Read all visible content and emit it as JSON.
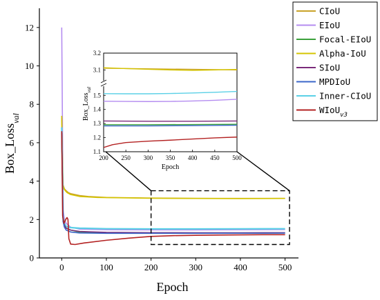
{
  "chart_data": [
    {
      "type": "line",
      "xlabel": "Epoch",
      "ylabel": "Box_Loss",
      "ylabel_sub": "val",
      "xlim": [
        -50,
        530
      ],
      "ylim": [
        0,
        13
      ],
      "xticks": [
        0,
        100,
        200,
        300,
        400,
        500
      ],
      "yticks": [
        0,
        2,
        4,
        6,
        8,
        10,
        12
      ],
      "legend_position": "top-right",
      "zoom_region": {
        "x": [
          200,
          510
        ],
        "y": [
          0.7,
          3.5
        ]
      },
      "series": [
        {
          "name": "CIoU",
          "color": "#c9a227",
          "x": [
            0,
            3,
            6,
            10,
            15,
            20,
            40,
            60,
            100,
            200,
            300,
            400,
            500
          ],
          "y": [
            7.3,
            3.8,
            3.6,
            3.5,
            3.4,
            3.35,
            3.25,
            3.2,
            3.15,
            3.12,
            3.1,
            3.1,
            3.1
          ]
        },
        {
          "name": "EIoU",
          "color": "#b48cf0",
          "x": [
            0,
            1,
            3,
            6,
            10,
            15,
            20,
            40,
            100,
            200,
            300,
            400,
            500
          ],
          "y": [
            12.0,
            9.0,
            2.5,
            2.0,
            1.8,
            1.7,
            1.6,
            1.5,
            1.47,
            1.46,
            1.46,
            1.47,
            1.48
          ]
        },
        {
          "name": "Focal-EIoU",
          "color": "#3aa03a",
          "x": [
            0,
            3,
            6,
            10,
            15,
            20,
            40,
            100,
            200,
            300,
            400,
            500
          ],
          "y": [
            6.5,
            2.0,
            1.7,
            1.55,
            1.5,
            1.45,
            1.35,
            1.3,
            1.29,
            1.29,
            1.29,
            1.3
          ]
        },
        {
          "name": "Alpha-IoU",
          "color": "#d4c400",
          "x": [
            0,
            2,
            5,
            8,
            12,
            20,
            40,
            80,
            200,
            250,
            300,
            350,
            400,
            450,
            500
          ],
          "y": [
            7.4,
            3.8,
            3.6,
            3.5,
            3.4,
            3.3,
            3.2,
            3.15,
            3.11,
            3.105,
            3.1,
            3.095,
            3.09,
            3.095,
            3.1
          ]
        },
        {
          "name": "SIoU",
          "color": "#7a2a7a",
          "x": [
            0,
            3,
            6,
            10,
            15,
            20,
            40,
            100,
            200,
            300,
            400,
            500
          ],
          "y": [
            6.5,
            2.0,
            1.7,
            1.55,
            1.5,
            1.45,
            1.38,
            1.33,
            1.315,
            1.31,
            1.31,
            1.315
          ]
        },
        {
          "name": "MPDIoU",
          "color": "#3a66c8",
          "x": [
            0,
            3,
            6,
            10,
            15,
            20,
            40,
            100,
            200,
            300,
            400,
            500
          ],
          "y": [
            6.5,
            1.9,
            1.6,
            1.45,
            1.4,
            1.35,
            1.3,
            1.28,
            1.28,
            1.28,
            1.285,
            1.29
          ]
        },
        {
          "name": "Inner-CIoU",
          "color": "#5ad0e6",
          "x": [
            0,
            3,
            6,
            10,
            15,
            20,
            40,
            100,
            200,
            300,
            400,
            500
          ],
          "y": [
            6.8,
            2.1,
            1.8,
            1.65,
            1.6,
            1.58,
            1.55,
            1.52,
            1.51,
            1.51,
            1.515,
            1.52
          ]
        },
        {
          "name": "WIoU",
          "name_sub": "v3",
          "color": "#b32020",
          "x": [
            0,
            2,
            5,
            8,
            10,
            12,
            14,
            16,
            20,
            30,
            50,
            100,
            150,
            200,
            250,
            300,
            350,
            400,
            450,
            500
          ],
          "y": [
            6.6,
            2.2,
            1.8,
            1.95,
            2.05,
            2.1,
            2.0,
            1.0,
            0.72,
            0.7,
            0.78,
            0.92,
            1.03,
            1.12,
            1.16,
            1.18,
            1.19,
            1.2,
            1.21,
            1.21
          ]
        }
      ]
    },
    {
      "type": "line",
      "role": "inset",
      "xlabel": "Epoch",
      "ylabel": "Box_Loss",
      "ylabel_sub": "val",
      "xlim": [
        200,
        500
      ],
      "xticks": [
        200,
        250,
        300,
        350,
        400,
        450,
        500
      ],
      "yticks_lower": [
        1.1,
        1.2,
        1.3,
        1.4,
        1.5
      ],
      "yticks_upper": [
        3.1,
        3.2
      ],
      "axis_break": {
        "lower": [
          1.1,
          1.56
        ],
        "upper": [
          3.04,
          3.2
        ]
      },
      "series": [
        {
          "name": "CIoU",
          "color": "#c9a227",
          "x": [
            200,
            500
          ],
          "y": [
            3.11,
            3.1
          ]
        },
        {
          "name": "EIoU",
          "color": "#b48cf0",
          "x": [
            200,
            250,
            300,
            350,
            400,
            450,
            500
          ],
          "y": [
            1.458,
            1.457,
            1.456,
            1.457,
            1.46,
            1.465,
            1.472
          ]
        },
        {
          "name": "Focal-EIoU",
          "color": "#3aa03a",
          "x": [
            200,
            300,
            400,
            500
          ],
          "y": [
            1.292,
            1.292,
            1.293,
            1.295
          ]
        },
        {
          "name": "Alpha-IoU",
          "color": "#d4c400",
          "x": [
            200,
            250,
            300,
            350,
            400,
            450,
            500
          ],
          "y": [
            3.113,
            3.108,
            3.104,
            3.1,
            3.097,
            3.1,
            3.103
          ]
        },
        {
          "name": "SIoU",
          "color": "#7a2a7a",
          "x": [
            200,
            300,
            400,
            500
          ],
          "y": [
            1.318,
            1.316,
            1.316,
            1.318
          ]
        },
        {
          "name": "MPDIoU",
          "color": "#3a66c8",
          "x": [
            200,
            300,
            400,
            500
          ],
          "y": [
            1.283,
            1.283,
            1.285,
            1.288
          ]
        },
        {
          "name": "Inner-CIoU",
          "color": "#5ad0e6",
          "x": [
            200,
            250,
            300,
            350,
            400,
            450,
            500
          ],
          "y": [
            1.512,
            1.511,
            1.511,
            1.513,
            1.517,
            1.522,
            1.528
          ]
        },
        {
          "name": "WIoU",
          "name_sub": "v3",
          "color": "#b32020",
          "x": [
            200,
            220,
            250,
            300,
            350,
            400,
            450,
            500
          ],
          "y": [
            1.13,
            1.15,
            1.165,
            1.175,
            1.182,
            1.19,
            1.198,
            1.204
          ]
        }
      ]
    }
  ]
}
